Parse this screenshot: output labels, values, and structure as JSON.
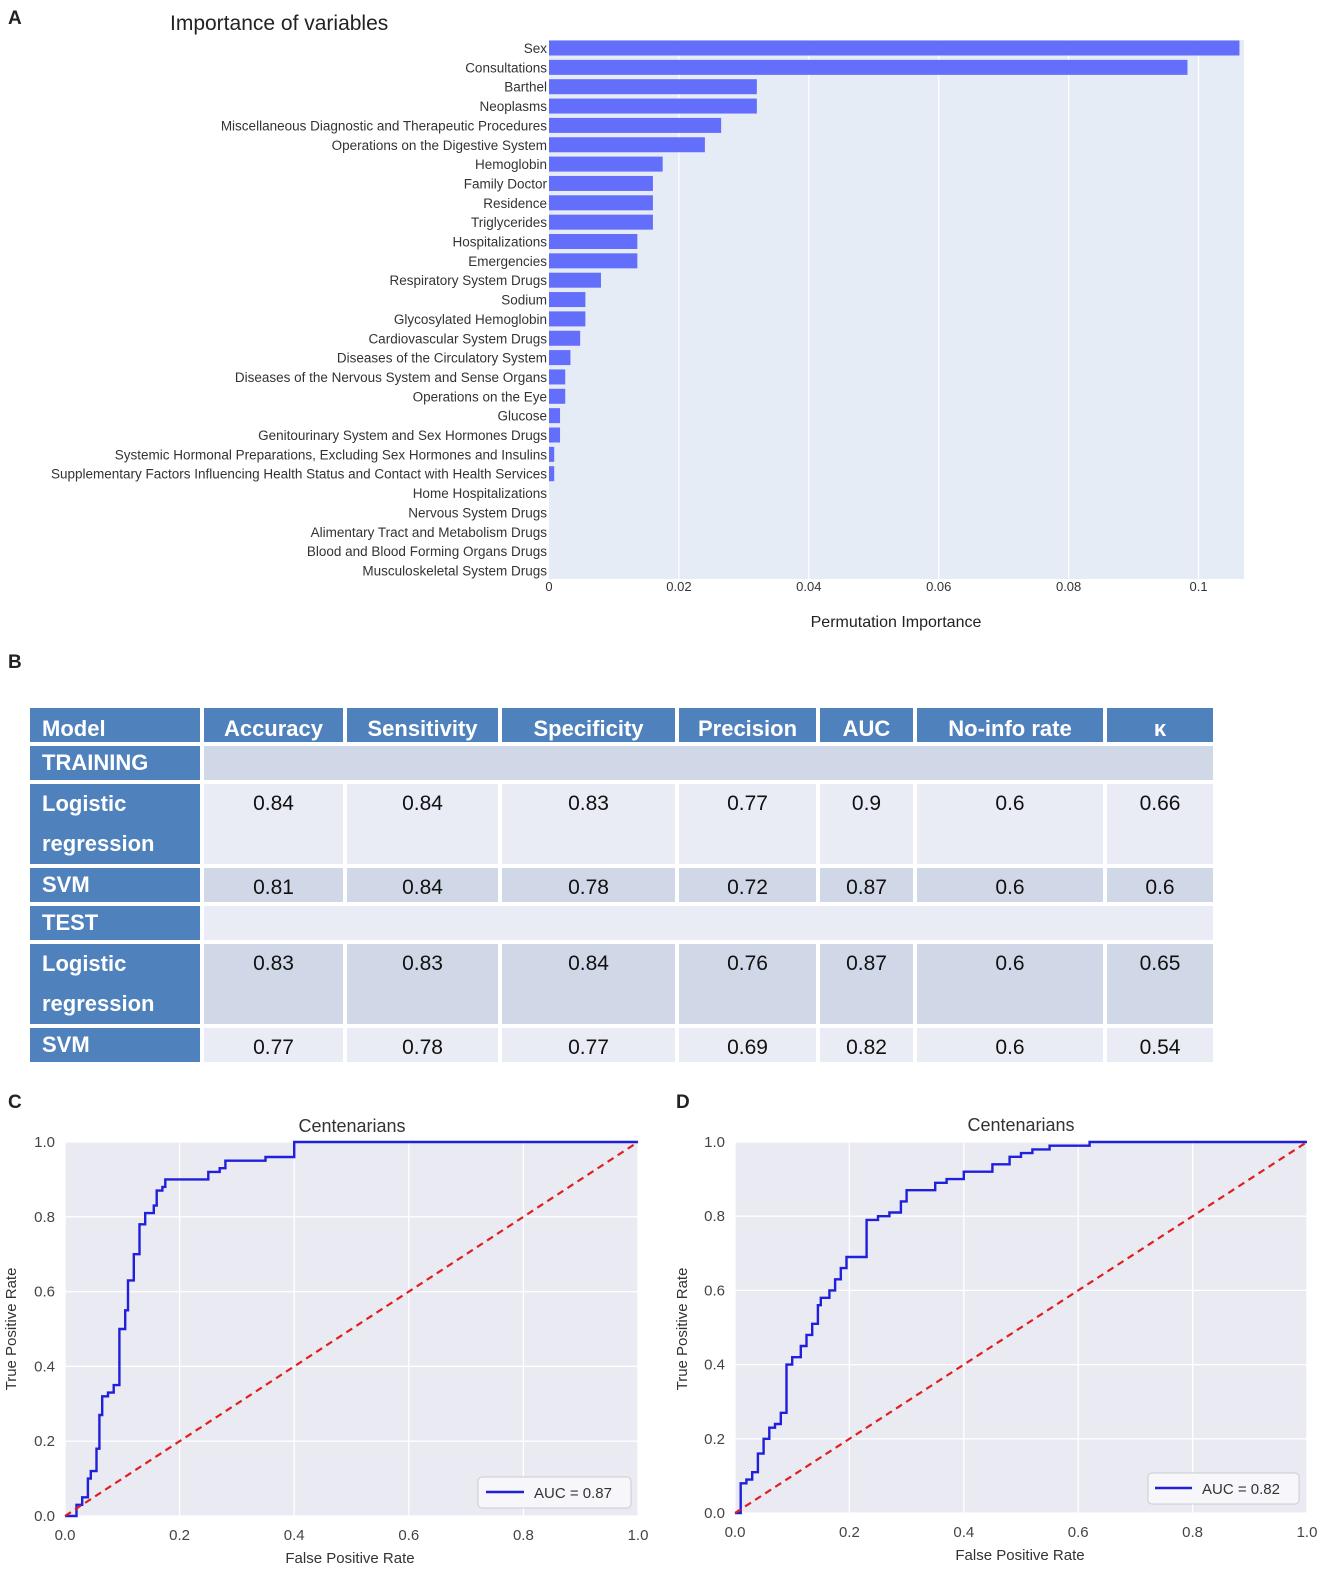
{
  "panels": {
    "a": "A",
    "b": "B",
    "c": "C",
    "d": "D"
  },
  "importance_chart": {
    "title": "Importance of variables",
    "xlabel": "Permutation Importance",
    "x_ticks": [
      "0",
      "0.02",
      "0.04",
      "0.06",
      "0.08",
      "0.1"
    ],
    "bar_color": "#636efa",
    "bg_color": "#e5ecf6"
  },
  "table": {
    "headers": [
      "Model",
      "Accuracy",
      "Sensitivity",
      "Specificity",
      "Precision",
      "AUC",
      "No-info rate",
      "κ"
    ],
    "training_label": "TRAINING",
    "test_label": "TEST",
    "training": [
      {
        "model_line1": "Logistic",
        "model_line2": "regression",
        "values": [
          "0.84",
          "0.84",
          "0.83",
          "0.77",
          "0.9",
          "0.6",
          "0.66"
        ]
      },
      {
        "model_line1": "SVM",
        "model_line2": "",
        "values": [
          "0.81",
          "0.84",
          "0.78",
          "0.72",
          "0.87",
          "0.6",
          "0.6"
        ]
      }
    ],
    "test": [
      {
        "model_line1": "Logistic",
        "model_line2": "regression",
        "values": [
          "0.83",
          "0.83",
          "0.84",
          "0.76",
          "0.87",
          "0.6",
          "0.65"
        ]
      },
      {
        "model_line1": "SVM",
        "model_line2": "",
        "values": [
          "0.77",
          "0.78",
          "0.77",
          "0.69",
          "0.82",
          "0.6",
          "0.54"
        ]
      }
    ],
    "header_color": "#4f81bd"
  },
  "roc_c": {
    "title": "Centenarians",
    "xlabel": "False Positive Rate",
    "ylabel": "True Positive Rate",
    "legend": "AUC = 0.87",
    "x_ticks": [
      "0.0",
      "0.2",
      "0.4",
      "0.6",
      "0.8",
      "1.0"
    ],
    "y_ticks": [
      "0.0",
      "0.2",
      "0.4",
      "0.6",
      "0.8",
      "1.0"
    ]
  },
  "roc_d": {
    "title": "Centenarians",
    "xlabel": "False Positive Rate",
    "ylabel": "True Positive Rate",
    "legend": "AUC = 0.82",
    "x_ticks": [
      "0.0",
      "0.2",
      "0.4",
      "0.6",
      "0.8",
      "1.0"
    ],
    "y_ticks": [
      "0.0",
      "0.2",
      "0.4",
      "0.6",
      "0.8",
      "1.0"
    ]
  },
  "chart_data": [
    {
      "type": "bar",
      "orientation": "horizontal",
      "title": "Importance of variables",
      "xlabel": "Permutation Importance",
      "ylabel": "",
      "xlim": [
        0,
        0.107
      ],
      "categories": [
        "Sex",
        "Consultations",
        "Barthel",
        "Neoplasms",
        "Miscellaneous Diagnostic and Therapeutic Procedures",
        "Operations on the Digestive System",
        "Hemoglobin",
        "Family Doctor",
        "Residence",
        "Triglycerides",
        "Hospitalizations",
        "Emergencies",
        "Respiratory System Drugs",
        "Sodium",
        "Glycosylated Hemoglobin",
        "Cardiovascular System Drugs",
        "Diseases of the Circulatory System",
        "Diseases of the Nervous System and Sense Organs",
        "Operations on the Eye",
        "Glucose",
        "Genitourinary System and Sex Hormones Drugs",
        "Systemic Hormonal Preparations, Excluding Sex Hormones and Insulins",
        "Supplementary Factors Influencing Health Status and Contact with Health Services",
        "Home Hospitalizations",
        "Nervous System Drugs",
        "Alimentary Tract and Metabolism Drugs",
        "Blood and Blood Forming Organs Drugs",
        "Musculoskeletal System Drugs"
      ],
      "values": [
        0.1063,
        0.0983,
        0.032,
        0.032,
        0.0265,
        0.024,
        0.0175,
        0.016,
        0.016,
        0.016,
        0.0136,
        0.0136,
        0.008,
        0.0056,
        0.0056,
        0.0048,
        0.0033,
        0.0025,
        0.0025,
        0.0017,
        0.0017,
        0.0008,
        0.0008,
        0,
        0,
        0,
        0,
        0
      ]
    },
    {
      "type": "line",
      "title": "Centenarians",
      "xlabel": "False Positive Rate",
      "ylabel": "True Positive Rate",
      "xlim": [
        0,
        1
      ],
      "ylim": [
        0,
        1
      ],
      "legend_position": "lower-right",
      "series": [
        {
          "name": "AUC = 0.87",
          "color": "#1f1fdc",
          "x": [
            0,
            0.02,
            0.02,
            0.03,
            0.03,
            0.04,
            0.04,
            0.045,
            0.045,
            0.055,
            0.055,
            0.06,
            0.06,
            0.065,
            0.065,
            0.075,
            0.075,
            0.085,
            0.085,
            0.095,
            0.095,
            0.105,
            0.105,
            0.11,
            0.11,
            0.12,
            0.12,
            0.13,
            0.13,
            0.14,
            0.14,
            0.155,
            0.155,
            0.16,
            0.16,
            0.17,
            0.17,
            0.175,
            0.175,
            0.185,
            0.185,
            0.25,
            0.25,
            0.27,
            0.27,
            0.28,
            0.28,
            0.35,
            0.35,
            0.4,
            0.4,
            0.6,
            0.6,
            1.0
          ],
          "y": [
            0,
            0,
            0.03,
            0.03,
            0.05,
            0.05,
            0.1,
            0.1,
            0.12,
            0.12,
            0.18,
            0.18,
            0.27,
            0.27,
            0.32,
            0.32,
            0.33,
            0.33,
            0.35,
            0.35,
            0.5,
            0.5,
            0.55,
            0.55,
            0.63,
            0.63,
            0.7,
            0.7,
            0.78,
            0.78,
            0.81,
            0.81,
            0.83,
            0.83,
            0.87,
            0.87,
            0.88,
            0.88,
            0.9,
            0.9,
            0.9,
            0.9,
            0.92,
            0.92,
            0.93,
            0.93,
            0.95,
            0.95,
            0.96,
            0.96,
            1.0,
            1.0,
            1.0,
            1.0
          ]
        },
        {
          "name": "chance",
          "color": "#e01f1f",
          "dashed": true,
          "x": [
            0,
            1
          ],
          "y": [
            0,
            1
          ]
        }
      ]
    },
    {
      "type": "line",
      "title": "Centenarians",
      "xlabel": "False Positive Rate",
      "ylabel": "True Positive Rate",
      "xlim": [
        0,
        1
      ],
      "ylim": [
        0,
        1
      ],
      "legend_position": "lower-right",
      "series": [
        {
          "name": "AUC = 0.82",
          "color": "#1f1fdc",
          "x": [
            0,
            0.01,
            0.01,
            0.02,
            0.02,
            0.03,
            0.03,
            0.04,
            0.04,
            0.05,
            0.05,
            0.06,
            0.06,
            0.07,
            0.07,
            0.08,
            0.08,
            0.09,
            0.09,
            0.1,
            0.1,
            0.115,
            0.115,
            0.125,
            0.125,
            0.135,
            0.135,
            0.145,
            0.145,
            0.15,
            0.15,
            0.165,
            0.165,
            0.175,
            0.175,
            0.185,
            0.185,
            0.195,
            0.195,
            0.23,
            0.23,
            0.25,
            0.25,
            0.27,
            0.27,
            0.29,
            0.29,
            0.3,
            0.3,
            0.35,
            0.35,
            0.37,
            0.37,
            0.4,
            0.4,
            0.45,
            0.45,
            0.48,
            0.48,
            0.5,
            0.5,
            0.52,
            0.52,
            0.55,
            0.55,
            0.6,
            0.6,
            0.62,
            0.62,
            0.65,
            0.65,
            0.8,
            0.8,
            0.82,
            1.0
          ],
          "y": [
            0,
            0,
            0.08,
            0.08,
            0.09,
            0.09,
            0.11,
            0.11,
            0.16,
            0.16,
            0.2,
            0.2,
            0.23,
            0.23,
            0.24,
            0.24,
            0.27,
            0.27,
            0.4,
            0.4,
            0.42,
            0.42,
            0.45,
            0.45,
            0.48,
            0.48,
            0.51,
            0.51,
            0.56,
            0.56,
            0.58,
            0.58,
            0.6,
            0.6,
            0.63,
            0.63,
            0.66,
            0.66,
            0.69,
            0.69,
            0.79,
            0.79,
            0.8,
            0.8,
            0.81,
            0.81,
            0.84,
            0.84,
            0.87,
            0.87,
            0.89,
            0.89,
            0.9,
            0.9,
            0.92,
            0.92,
            0.94,
            0.94,
            0.96,
            0.96,
            0.97,
            0.97,
            0.98,
            0.98,
            0.99,
            0.99,
            0.99,
            0.99,
            1.0,
            1.0,
            1.0,
            1.0,
            1.0,
            1.0,
            1.0
          ]
        },
        {
          "name": "chance",
          "color": "#e01f1f",
          "dashed": true,
          "x": [
            0,
            1
          ],
          "y": [
            0,
            1
          ]
        }
      ]
    }
  ]
}
